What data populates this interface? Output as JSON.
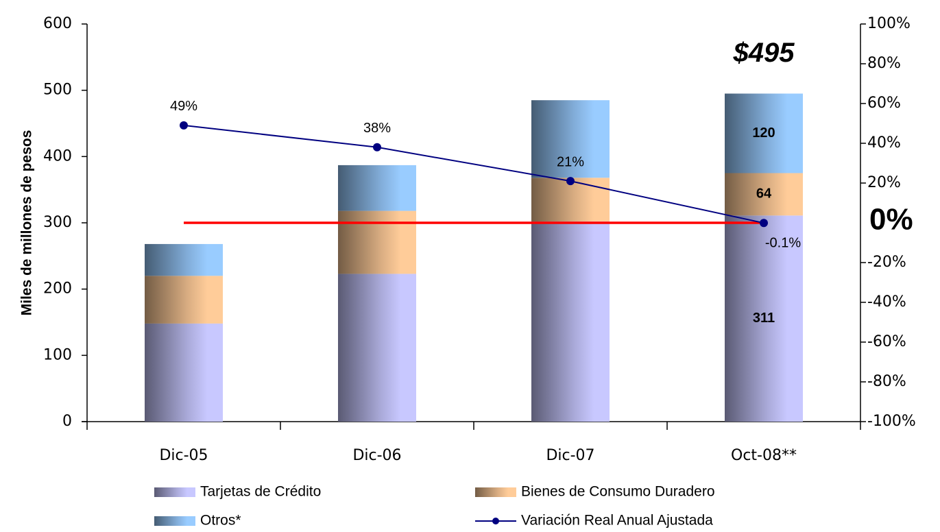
{
  "chart_data": {
    "type": "stacked_bar_line",
    "y_label": "Miles de millones de pesos",
    "categories": [
      "Dic-05",
      "Dic-06",
      "Dic-07",
      "Oct-08**"
    ],
    "series": [
      {
        "name": "Tarjetas de Crédito",
        "color": "#c8c8ff",
        "values": [
          148,
          223,
          302,
          311
        ],
        "value_labels": [
          null,
          null,
          null,
          "311"
        ]
      },
      {
        "name": "Bienes de Consumo Duradero",
        "color": "#ffcc99",
        "values": [
          72,
          95,
          66,
          64
        ],
        "value_labels": [
          null,
          null,
          null,
          "64"
        ]
      },
      {
        "name": "Otros*",
        "color": "#99ccff",
        "values": [
          48,
          69,
          117,
          120
        ],
        "value_labels": [
          null,
          null,
          null,
          "120"
        ]
      },
      {
        "name": "Variación Real Anual Ajustada",
        "color": "#000080",
        "type": "line",
        "axis": "y2",
        "values": [
          49,
          38,
          21,
          -0.1
        ],
        "value_labels": [
          "49%",
          "38%",
          "21%",
          "-0.1%"
        ]
      }
    ],
    "ylim": [
      0,
      600
    ],
    "yticks": [
      0,
      100,
      200,
      300,
      400,
      500,
      600
    ],
    "y2lim": [
      -100,
      100
    ],
    "y2ticks": [
      {
        "value": -100,
        "label": "-100%"
      },
      {
        "value": -80,
        "label": "-80%"
      },
      {
        "value": -60,
        "label": "-60%"
      },
      {
        "value": -40,
        "label": "-40%"
      },
      {
        "value": -20,
        "label": "-20%"
      },
      {
        "value": 20,
        "label": "20%"
      },
      {
        "value": 40,
        "label": "40%"
      },
      {
        "value": 60,
        "label": "60%"
      },
      {
        "value": 80,
        "label": "80%"
      },
      {
        "value": 100,
        "label": "100%"
      }
    ],
    "reference_line": {
      "axis": "y2",
      "value": 0,
      "color": "#ff0000",
      "label": "0%"
    },
    "total_annotation": {
      "text": "$495",
      "color": "#a0102a"
    },
    "legend": "bottom"
  }
}
